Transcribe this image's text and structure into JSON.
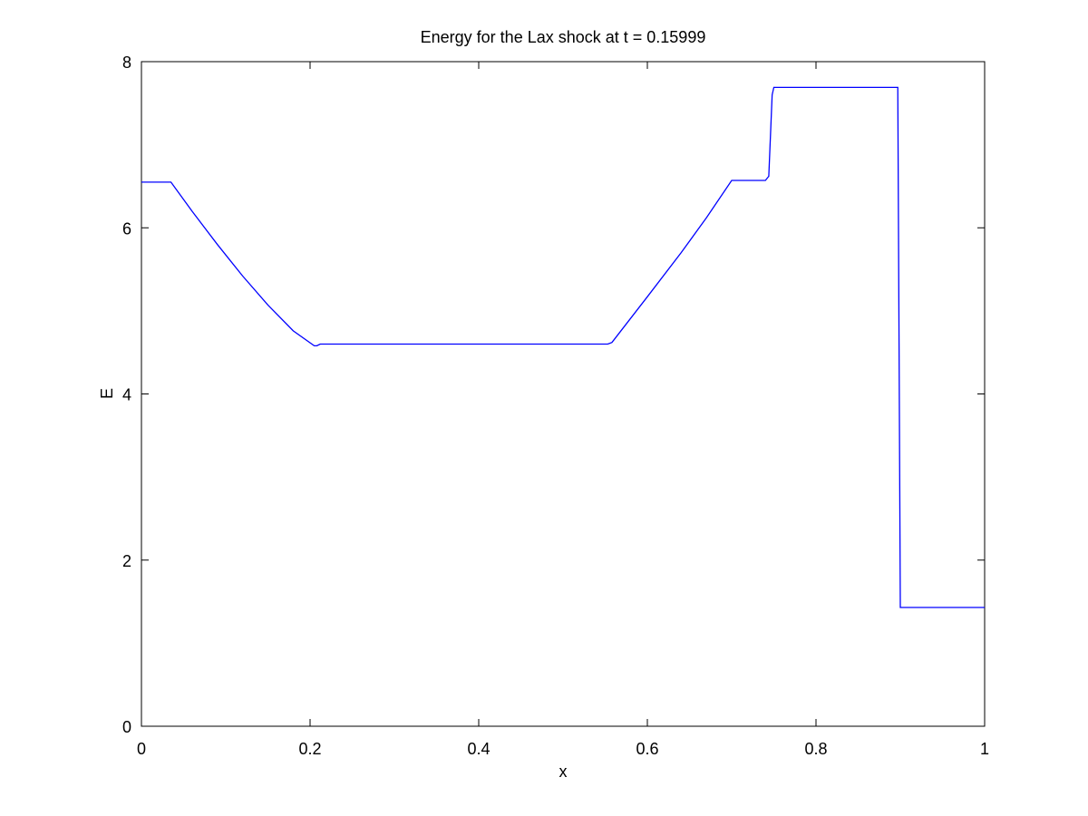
{
  "chart_data": {
    "type": "line",
    "title": "Energy for the Lax shock at t = 0.15999",
    "xlabel": "x",
    "ylabel": "E",
    "xlim": [
      0,
      1
    ],
    "ylim": [
      0,
      8
    ],
    "xticks": [
      0,
      0.2,
      0.4,
      0.6,
      0.8,
      1
    ],
    "xtick_labels": [
      "0",
      "0.2",
      "0.4",
      "0.6",
      "0.8",
      "1"
    ],
    "yticks": [
      0,
      2,
      4,
      6,
      8
    ],
    "ytick_labels": [
      "0",
      "2",
      "4",
      "6",
      "8"
    ],
    "grid": false,
    "line_color": "#0000ff",
    "series": [
      {
        "x": [
          0.0,
          0.035,
          0.06,
          0.09,
          0.12,
          0.15,
          0.18,
          0.205,
          0.208,
          0.212,
          0.3,
          0.4,
          0.5,
          0.553,
          0.558,
          0.6,
          0.64,
          0.67,
          0.7,
          0.74,
          0.744,
          0.748,
          0.75,
          0.8,
          0.897,
          0.8985,
          0.9,
          0.95,
          1.0
        ],
        "y": [
          6.55,
          6.55,
          6.2,
          5.8,
          5.42,
          5.07,
          4.76,
          4.58,
          4.58,
          4.6,
          4.6,
          4.6,
          4.6,
          4.6,
          4.62,
          5.17,
          5.7,
          6.12,
          6.57,
          6.57,
          6.62,
          7.6,
          7.69,
          7.69,
          7.69,
          4.6,
          1.43,
          1.43,
          1.43
        ]
      }
    ]
  }
}
